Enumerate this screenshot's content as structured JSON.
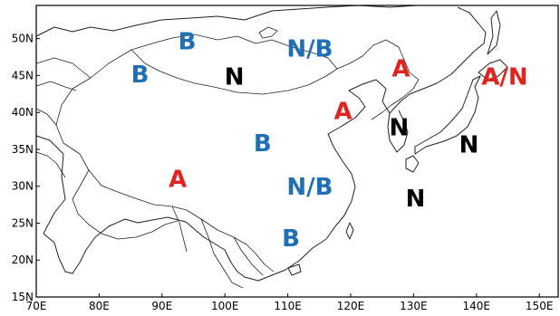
{
  "map": {
    "lon_ticks": [
      {
        "value": 70,
        "label": "70E"
      },
      {
        "value": 80,
        "label": "80E"
      },
      {
        "value": 90,
        "label": "90E"
      },
      {
        "value": 100,
        "label": "100E"
      },
      {
        "value": 110,
        "label": "110E"
      },
      {
        "value": 120,
        "label": "120E"
      },
      {
        "value": 130,
        "label": "130E"
      },
      {
        "value": 140,
        "label": "140E"
      },
      {
        "value": 150,
        "label": "150E"
      }
    ],
    "lat_ticks": [
      {
        "value": 15,
        "label": "15N"
      },
      {
        "value": 20,
        "label": "20N"
      },
      {
        "value": 25,
        "label": "25N"
      },
      {
        "value": 30,
        "label": "30N"
      },
      {
        "value": 35,
        "label": "35N"
      },
      {
        "value": 40,
        "label": "40N"
      },
      {
        "value": 45,
        "label": "45N"
      },
      {
        "value": 50,
        "label": "50N"
      }
    ],
    "colors": {
      "B": "#1f6fb5",
      "A": "#e0241f",
      "N": "#000000",
      "A/N": "#e0241f",
      "N/B": "#1f6fb5"
    },
    "region_labels": [
      {
        "text": "B",
        "lon": 94.0,
        "lat": 49.5
      },
      {
        "text": "N/B",
        "lon": 113.5,
        "lat": 48.5
      },
      {
        "text": "A",
        "lon": 128.0,
        "lat": 45.8
      },
      {
        "text": "A/N",
        "lon": 144.5,
        "lat": 44.7
      },
      {
        "text": "B",
        "lon": 86.5,
        "lat": 45.0
      },
      {
        "text": "N",
        "lon": 101.5,
        "lat": 44.7
      },
      {
        "text": "A",
        "lon": 118.8,
        "lat": 40.0
      },
      {
        "text": "N",
        "lon": 127.7,
        "lat": 37.8
      },
      {
        "text": "N",
        "lon": 138.8,
        "lat": 35.5
      },
      {
        "text": "B",
        "lon": 106.0,
        "lat": 35.7
      },
      {
        "text": "A",
        "lon": 92.5,
        "lat": 30.8
      },
      {
        "text": "N/B",
        "lon": 113.5,
        "lat": 29.8
      },
      {
        "text": "N",
        "lon": 130.3,
        "lat": 28.2
      },
      {
        "text": "B",
        "lon": 110.5,
        "lat": 22.8
      }
    ]
  }
}
